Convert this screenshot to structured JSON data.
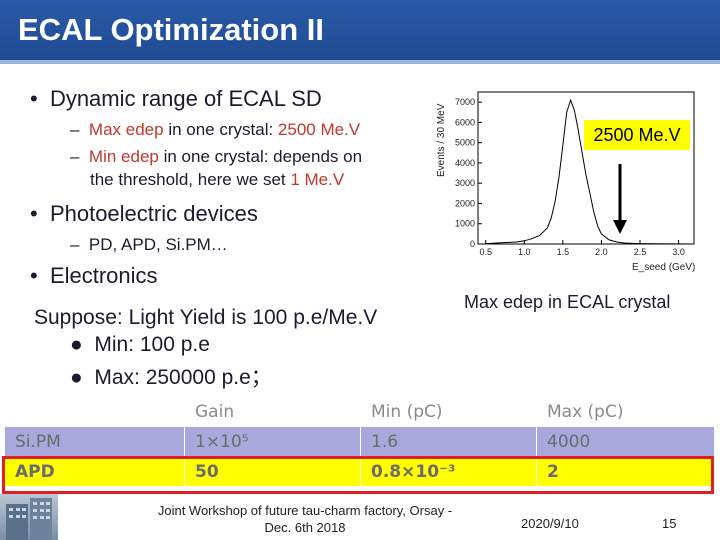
{
  "slide": {
    "title": "ECAL Optimization II",
    "bullets": [
      {
        "text": "Dynamic range of ECAL SD"
      },
      {
        "text": "Photoelectric devices"
      },
      {
        "text": "Electronics"
      }
    ],
    "sub_max": {
      "dash": "–",
      "a": "Max edep",
      "b": " in one crystal: ",
      "c": "2500 Me.V"
    },
    "sub_min": {
      "dash": "–",
      "a": "Min edep",
      "b": " in one crystal: depends on",
      "line2a": "the threshold, here we set ",
      "line2b": "1 Me.V"
    },
    "sub_devices": {
      "dash": "–",
      "text": "PD, APD, Si.PM…"
    },
    "suppose": "Suppose: Light Yield  is 100 p.e/Me.V",
    "min_line": "Min: 100 p.e",
    "max_line": "Max: 250000 p.e；",
    "caption": "Max edep in ECAL crystal",
    "footer_text_1": "Joint Workshop of future tau-charm factory, Orsay -",
    "footer_text_2": "Dec. 6th 2018",
    "date": "2020/9/10",
    "page": "15"
  },
  "table": {
    "headers": [
      "",
      "Gain",
      "Min (pC)",
      "Max (pC)"
    ],
    "rows": [
      [
        "Si.PM",
        "1×10⁵",
        "1.6",
        "4000"
      ],
      [
        "APD",
        "50",
        "0.8×10⁻³",
        "2"
      ]
    ]
  },
  "chart_data": {
    "type": "histogram",
    "ylabel": "Events / 30 MeV",
    "xlabel": "E_seed (GeV)",
    "annotation": "2500 Me.V",
    "xlim": [
      0.4,
      3.2
    ],
    "ylim": [
      0,
      7500
    ],
    "y_ticks": [
      0,
      1000,
      2000,
      3000,
      4000,
      5000,
      6000,
      7000
    ],
    "x_ticks": [
      0.5,
      1.0,
      1.5,
      2.0,
      2.5,
      3.0
    ],
    "x": [
      0.5,
      0.6,
      0.7,
      0.8,
      0.9,
      1.0,
      1.1,
      1.2,
      1.3,
      1.35,
      1.4,
      1.45,
      1.5,
      1.55,
      1.6,
      1.65,
      1.7,
      1.75,
      1.8,
      1.85,
      1.9,
      1.95,
      2.0,
      2.1,
      2.2,
      2.3,
      2.4,
      2.5,
      2.7,
      3.0,
      3.2
    ],
    "values": [
      20,
      40,
      60,
      80,
      100,
      160,
      260,
      420,
      800,
      1300,
      2100,
      3300,
      4900,
      6500,
      7100,
      6600,
      5600,
      4500,
      3400,
      2500,
      1600,
      900,
      500,
      200,
      100,
      50,
      30,
      20,
      10,
      5,
      0
    ],
    "colors": {
      "annotation_bg": "#ffff00",
      "line": "#000000"
    }
  }
}
